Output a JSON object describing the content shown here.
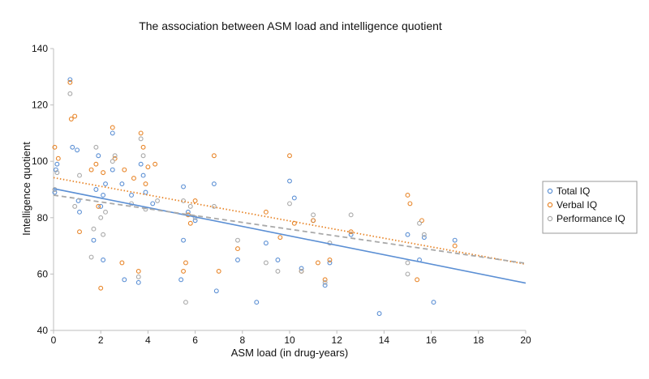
{
  "chart_data": {
    "type": "scatter",
    "title": "The association between ASM load and intelligence quotient",
    "xlabel": "ASM load (in drug-years)",
    "ylabel": "Intelligence quotient",
    "xlim": [
      0,
      20
    ],
    "ylim": [
      40,
      140
    ],
    "x_ticks": [
      0,
      2,
      4,
      6,
      8,
      10,
      12,
      14,
      16,
      18,
      20
    ],
    "y_ticks": [
      40,
      60,
      80,
      100,
      120,
      140
    ],
    "grid": false,
    "legend_position": "right",
    "series": [
      {
        "name": "Total IQ",
        "color": "#5b8fd4",
        "marker": "open-circle",
        "points": [
          [
            0.05,
            89
          ],
          [
            0.1,
            97
          ],
          [
            0.15,
            99
          ],
          [
            0.7,
            129
          ],
          [
            0.8,
            105
          ],
          [
            1,
            104
          ],
          [
            1.05,
            86
          ],
          [
            1.1,
            82
          ],
          [
            1.7,
            72
          ],
          [
            1.8,
            90
          ],
          [
            1.9,
            102
          ],
          [
            2.0,
            84
          ],
          [
            2.1,
            88
          ],
          [
            2.1,
            65
          ],
          [
            2.2,
            92
          ],
          [
            2.5,
            110
          ],
          [
            2.5,
            97
          ],
          [
            2.9,
            92
          ],
          [
            3.0,
            58
          ],
          [
            3.3,
            88
          ],
          [
            3.6,
            57
          ],
          [
            3.7,
            99
          ],
          [
            3.8,
            95
          ],
          [
            3.9,
            89
          ],
          [
            4.2,
            85
          ],
          [
            5.4,
            58
          ],
          [
            5.5,
            72
          ],
          [
            5.5,
            91
          ],
          [
            5.7,
            82
          ],
          [
            6.0,
            79
          ],
          [
            6.8,
            92
          ],
          [
            6.9,
            54
          ],
          [
            7.8,
            65
          ],
          [
            8.6,
            50
          ],
          [
            9.0,
            71
          ],
          [
            9.5,
            65
          ],
          [
            10.0,
            93
          ],
          [
            10.2,
            87
          ],
          [
            10.5,
            62
          ],
          [
            11.0,
            79
          ],
          [
            11.5,
            56
          ],
          [
            11.7,
            64
          ],
          [
            12.6,
            74
          ],
          [
            13.8,
            46
          ],
          [
            15.0,
            74
          ],
          [
            15.5,
            65
          ],
          [
            15.7,
            73
          ],
          [
            16.1,
            50
          ],
          [
            17.0,
            72
          ]
        ],
        "trendline": {
          "style": "solid",
          "from": [
            0,
            90.3
          ],
          "to": [
            20,
            56.8
          ]
        }
      },
      {
        "name": "Verbal IQ",
        "color": "#e8862a",
        "marker": "open-circle",
        "points": [
          [
            0.05,
            105
          ],
          [
            0.2,
            101
          ],
          [
            0.7,
            128
          ],
          [
            0.75,
            115
          ],
          [
            0.9,
            116
          ],
          [
            1.1,
            75
          ],
          [
            1.6,
            97
          ],
          [
            1.8,
            99
          ],
          [
            1.9,
            84
          ],
          [
            2.0,
            55
          ],
          [
            2.1,
            96
          ],
          [
            2.5,
            112
          ],
          [
            2.6,
            101
          ],
          [
            2.9,
            64
          ],
          [
            3.0,
            97
          ],
          [
            3.4,
            94
          ],
          [
            3.6,
            61
          ],
          [
            3.7,
            110
          ],
          [
            3.8,
            105
          ],
          [
            3.9,
            92
          ],
          [
            4.0,
            98
          ],
          [
            4.3,
            99
          ],
          [
            5.5,
            61
          ],
          [
            5.6,
            64
          ],
          [
            5.7,
            81
          ],
          [
            5.8,
            78
          ],
          [
            6.0,
            86
          ],
          [
            6.8,
            102
          ],
          [
            7.0,
            61
          ],
          [
            7.8,
            69
          ],
          [
            9.0,
            82
          ],
          [
            9.6,
            73
          ],
          [
            10.0,
            102
          ],
          [
            10.2,
            78
          ],
          [
            10.5,
            61
          ],
          [
            11.0,
            79
          ],
          [
            11.2,
            64
          ],
          [
            11.5,
            58
          ],
          [
            11.7,
            65
          ],
          [
            12.6,
            75
          ],
          [
            15.0,
            88
          ],
          [
            15.1,
            85
          ],
          [
            15.4,
            58
          ],
          [
            15.6,
            79
          ],
          [
            17.0,
            70
          ]
        ],
        "trendline": {
          "style": "dotted",
          "from": [
            0,
            94.2
          ],
          "to": [
            20,
            63.5
          ]
        }
      },
      {
        "name": "Performance IQ",
        "color": "#a9a9a9",
        "marker": "open-circle",
        "points": [
          [
            0.05,
            90
          ],
          [
            0.15,
            96
          ],
          [
            0.7,
            124
          ],
          [
            0.9,
            84
          ],
          [
            1.1,
            95
          ],
          [
            1.6,
            66
          ],
          [
            1.7,
            76
          ],
          [
            1.8,
            105
          ],
          [
            2.0,
            80
          ],
          [
            2.1,
            74
          ],
          [
            2.2,
            82
          ],
          [
            2.5,
            100
          ],
          [
            2.6,
            102
          ],
          [
            3.3,
            85
          ],
          [
            3.6,
            59
          ],
          [
            3.7,
            108
          ],
          [
            3.8,
            102
          ],
          [
            3.9,
            83
          ],
          [
            4.4,
            86
          ],
          [
            5.5,
            86
          ],
          [
            5.6,
            50
          ],
          [
            5.8,
            84
          ],
          [
            6.0,
            80
          ],
          [
            6.8,
            84
          ],
          [
            7.8,
            72
          ],
          [
            9.0,
            64
          ],
          [
            9.5,
            61
          ],
          [
            10.0,
            85
          ],
          [
            10.5,
            61
          ],
          [
            11.0,
            81
          ],
          [
            11.5,
            57
          ],
          [
            11.7,
            71
          ],
          [
            12.6,
            81
          ],
          [
            15.0,
            64
          ],
          [
            15.0,
            60
          ],
          [
            15.5,
            78
          ],
          [
            15.7,
            74
          ]
        ],
        "trendline": {
          "style": "dashed",
          "from": [
            0,
            88
          ],
          "to": [
            20,
            63.8
          ]
        }
      }
    ]
  }
}
